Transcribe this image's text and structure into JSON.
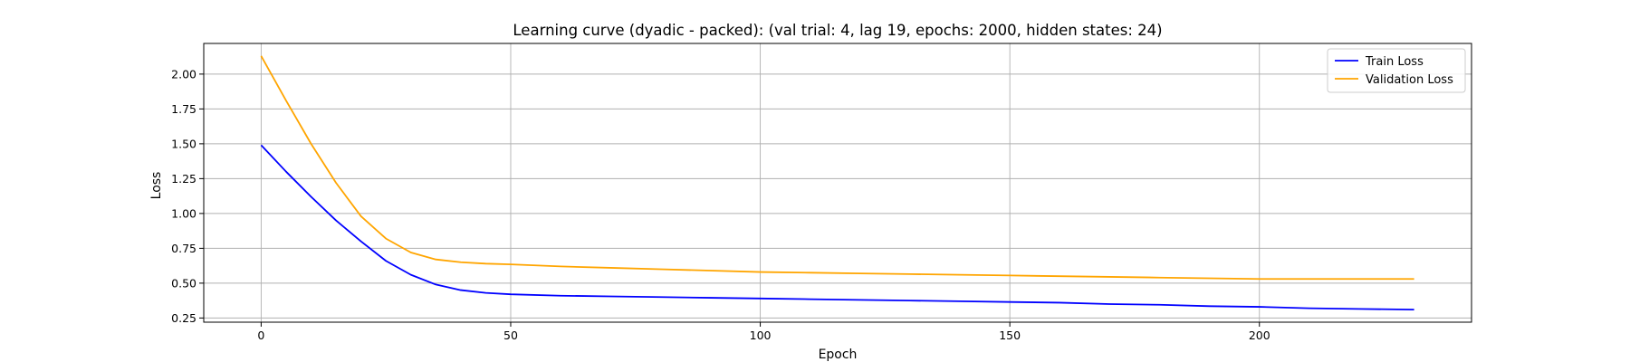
{
  "chart_data": {
    "type": "line",
    "title": "Learning curve (dyadic - packed): (val trial: 4, lag 19, epochs: 2000, hidden states: 24)",
    "xlabel": "Epoch",
    "ylabel": "Loss",
    "xlim": [
      -11.5,
      242.5
    ],
    "ylim": [
      0.22,
      2.22
    ],
    "xticks": [
      0,
      50,
      100,
      150,
      200
    ],
    "yticks": [
      0.25,
      0.5,
      0.75,
      1.0,
      1.25,
      1.5,
      1.75,
      2.0
    ],
    "ytick_labels": [
      "0.25",
      "0.50",
      "0.75",
      "1.00",
      "1.25",
      "1.50",
      "1.75",
      "2.00"
    ],
    "grid": true,
    "legend_position": "top-right",
    "series": [
      {
        "name": "Train Loss",
        "color": "#0000ff",
        "x": [
          0,
          5,
          10,
          15,
          20,
          25,
          30,
          35,
          40,
          45,
          50,
          60,
          70,
          80,
          90,
          100,
          110,
          120,
          130,
          140,
          150,
          160,
          170,
          180,
          190,
          200,
          210,
          220,
          231
        ],
        "y": [
          1.49,
          1.3,
          1.12,
          0.95,
          0.8,
          0.66,
          0.56,
          0.49,
          0.45,
          0.43,
          0.42,
          0.41,
          0.405,
          0.4,
          0.395,
          0.39,
          0.385,
          0.38,
          0.375,
          0.37,
          0.365,
          0.36,
          0.35,
          0.345,
          0.335,
          0.33,
          0.32,
          0.315,
          0.31
        ]
      },
      {
        "name": "Validation Loss",
        "color": "#ffa500",
        "x": [
          0,
          5,
          10,
          15,
          20,
          25,
          30,
          35,
          40,
          45,
          50,
          60,
          70,
          80,
          90,
          100,
          110,
          120,
          130,
          140,
          150,
          160,
          170,
          180,
          190,
          200,
          210,
          220,
          231
        ],
        "y": [
          2.13,
          1.81,
          1.5,
          1.22,
          0.98,
          0.82,
          0.72,
          0.67,
          0.65,
          0.64,
          0.635,
          0.62,
          0.61,
          0.6,
          0.59,
          0.58,
          0.575,
          0.57,
          0.565,
          0.56,
          0.555,
          0.55,
          0.545,
          0.54,
          0.535,
          0.53,
          0.53,
          0.53,
          0.53
        ]
      }
    ]
  }
}
